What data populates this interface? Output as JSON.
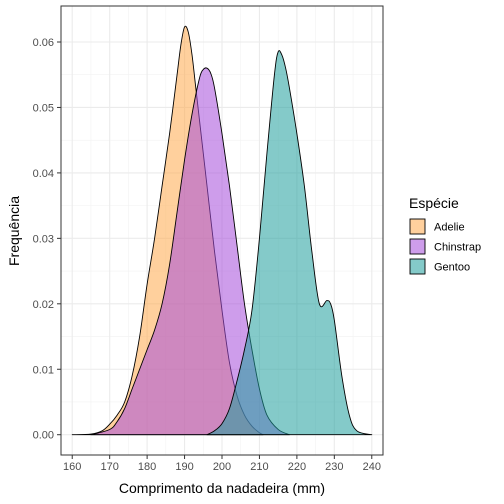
{
  "chart_data": {
    "type": "area",
    "xlabel": "Comprimento da nadadeira (mm)",
    "ylabel": "Frequência",
    "xlim": [
      157,
      243
    ],
    "ylim": [
      -0.0031,
      0.0655
    ],
    "x_ticks": [
      160,
      170,
      180,
      190,
      200,
      210,
      220,
      230,
      240
    ],
    "y_ticks": [
      0.0,
      0.01,
      0.02,
      0.03,
      0.04,
      0.05,
      0.06
    ],
    "y_tick_labels": [
      "0.00",
      "0.01",
      "0.02",
      "0.03",
      "0.04",
      "0.05",
      "0.06"
    ],
    "grid": true,
    "legend": {
      "title": "Espécie",
      "position": "right"
    },
    "series": [
      {
        "name": "Adelie",
        "color": "#FFA94D",
        "x": [
          160,
          165,
          168,
          170,
          172,
          174,
          176,
          178,
          180,
          182,
          184,
          186,
          188,
          189,
          190,
          191,
          192,
          193,
          194,
          196,
          198,
          200,
          202,
          204,
          206,
          208,
          210,
          211
        ],
        "y": [
          0.0,
          0.0001,
          0.0006,
          0.0016,
          0.003,
          0.005,
          0.009,
          0.015,
          0.023,
          0.03,
          0.038,
          0.046,
          0.055,
          0.0595,
          0.0623,
          0.0615,
          0.058,
          0.053,
          0.048,
          0.038,
          0.028,
          0.019,
          0.011,
          0.006,
          0.003,
          0.0013,
          0.0003,
          0.0
        ]
      },
      {
        "name": "Chinstrap",
        "color": "#A64CDB",
        "x": [
          165,
          170,
          172,
          174,
          176,
          178,
          180,
          182,
          184,
          186,
          188,
          190,
          192,
          194,
          195,
          196,
          197,
          198,
          200,
          202,
          204,
          206,
          208,
          210,
          212,
          215,
          218
        ],
        "y": [
          0.0,
          0.0008,
          0.002,
          0.004,
          0.007,
          0.01,
          0.013,
          0.016,
          0.02,
          0.026,
          0.034,
          0.042,
          0.049,
          0.0545,
          0.0558,
          0.056,
          0.0552,
          0.053,
          0.046,
          0.038,
          0.029,
          0.02,
          0.013,
          0.007,
          0.003,
          0.0008,
          0.0
        ]
      },
      {
        "name": "Gentoo",
        "color": "#1F9E9C",
        "x": [
          196,
          198,
          200,
          202,
          204,
          206,
          208,
          210,
          212,
          214,
          215,
          216,
          217,
          218,
          220,
          222,
          224,
          226,
          228,
          229,
          230,
          232,
          234,
          236,
          240
        ],
        "y": [
          0.0,
          0.0006,
          0.0017,
          0.004,
          0.0082,
          0.013,
          0.019,
          0.03,
          0.043,
          0.055,
          0.0585,
          0.058,
          0.056,
          0.053,
          0.046,
          0.038,
          0.028,
          0.02,
          0.0205,
          0.02,
          0.0175,
          0.009,
          0.003,
          0.0006,
          0.0
        ]
      }
    ]
  }
}
